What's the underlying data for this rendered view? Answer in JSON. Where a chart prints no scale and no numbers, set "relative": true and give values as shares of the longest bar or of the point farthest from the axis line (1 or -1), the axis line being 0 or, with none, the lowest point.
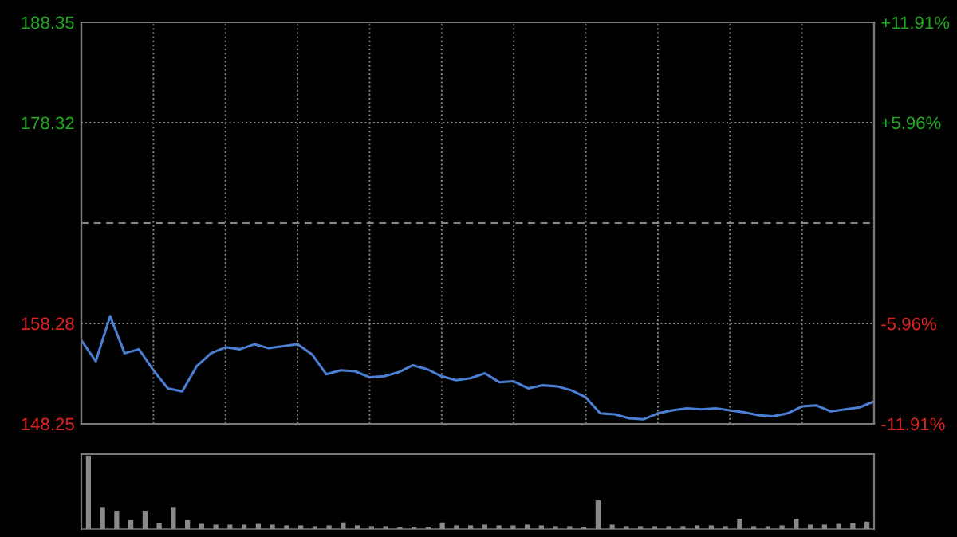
{
  "chart_data": [
    {
      "type": "line",
      "categories": [
        null,
        null,
        null,
        null,
        null,
        null,
        null,
        null,
        null,
        null,
        null,
        null,
        null,
        null,
        null,
        null,
        null,
        null,
        null,
        null,
        null,
        null,
        null,
        null,
        null,
        null,
        null,
        null,
        null,
        null,
        null,
        null,
        null,
        null,
        null,
        null,
        null,
        null,
        null,
        null,
        null,
        null,
        null,
        null,
        null,
        null,
        null,
        null,
        null,
        null,
        null,
        null,
        null,
        null,
        null,
        null
      ],
      "ylim": [
        148.25,
        188.35
      ],
      "yticks": [
        148.25,
        158.28,
        178.32,
        188.35
      ],
      "y2lim": [
        -11.91,
        11.91
      ],
      "y2ticks": [
        {
          "value": -11.91,
          "label": "-11.91%"
        },
        {
          "value": -5.96,
          "label": "-5.96%"
        },
        {
          "value": 5.96,
          "label": "+5.96%"
        },
        {
          "value": 11.91,
          "label": "+11.91%"
        }
      ],
      "grid": true,
      "line_style": "solid",
      "marker": "none",
      "ref_lines": [
        {
          "axis": "y",
          "value": 168.3,
          "label": null,
          "color": "#888888",
          "line_style": "dashed"
        }
      ],
      "series": [
        {
          "color": "#4a7fd4",
          "values": [
            156.6,
            154.5,
            159.0,
            155.3,
            155.7,
            153.6,
            151.8,
            151.5,
            154.0,
            155.3,
            155.9,
            155.7,
            156.2,
            155.8,
            156.0,
            156.2,
            155.2,
            153.2,
            153.6,
            153.5,
            152.9,
            153.0,
            153.4,
            154.1,
            153.7,
            153.0,
            152.6,
            152.8,
            153.3,
            152.4,
            152.5,
            151.8,
            152.1,
            152.0,
            151.6,
            150.9,
            149.3,
            149.2,
            148.8,
            148.7,
            149.3,
            149.6,
            149.8,
            149.7,
            149.8,
            149.6,
            149.4,
            149.1,
            149.0,
            149.3,
            150.0,
            150.1,
            149.5,
            149.7,
            149.9,
            150.5
          ]
        }
      ]
    },
    {
      "type": "bar",
      "relative": true,
      "color": "#8a8a8a",
      "categories": [
        null,
        null,
        null,
        null,
        null,
        null,
        null,
        null,
        null,
        null,
        null,
        null,
        null,
        null,
        null,
        null,
        null,
        null,
        null,
        null,
        null,
        null,
        null,
        null,
        null,
        null,
        null,
        null,
        null,
        null,
        null,
        null,
        null,
        null,
        null,
        null,
        null,
        null,
        null,
        null,
        null,
        null,
        null,
        null,
        null,
        null,
        null,
        null,
        null,
        null,
        null,
        null,
        null,
        null,
        null,
        null
      ],
      "values": [
        1.0,
        0.3,
        0.25,
        0.12,
        0.25,
        0.08,
        0.3,
        0.12,
        0.07,
        0.06,
        0.06,
        0.06,
        0.07,
        0.06,
        0.05,
        0.05,
        0.04,
        0.05,
        0.09,
        0.05,
        0.04,
        0.04,
        0.03,
        0.03,
        0.03,
        0.09,
        0.05,
        0.05,
        0.06,
        0.05,
        0.05,
        0.06,
        0.05,
        0.04,
        0.04,
        0.03,
        0.39,
        0.06,
        0.04,
        0.04,
        0.04,
        0.04,
        0.04,
        0.05,
        0.05,
        0.04,
        0.14,
        0.04,
        0.04,
        0.05,
        0.14,
        0.06,
        0.06,
        0.07,
        0.08,
        0.1
      ]
    }
  ]
}
